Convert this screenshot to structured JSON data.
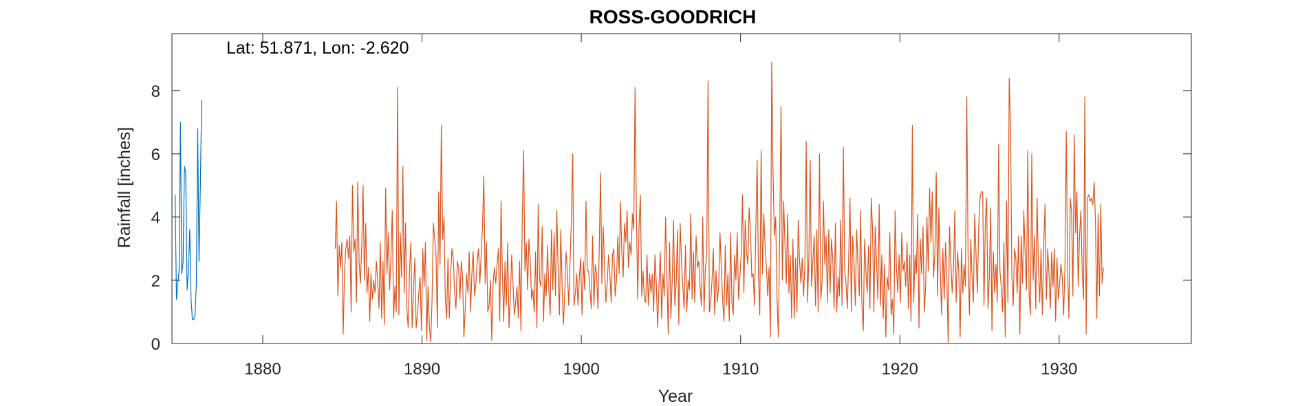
{
  "chart_data": {
    "type": "line",
    "title": "ROSS-GOODRICH",
    "annotation": "Lat: 51.871, Lon: -2.620",
    "xlabel": "Year",
    "ylabel": "Rainfall [inches]",
    "xlim": [
      1874.3,
      1938.3
    ],
    "ylim": [
      0,
      9.8
    ],
    "xticks": [
      1880,
      1890,
      1900,
      1910,
      1920,
      1930
    ],
    "yticks": [
      0,
      2,
      4,
      6,
      8
    ],
    "grid": false,
    "box": true,
    "series": [
      {
        "color": "#0072BD",
        "x_start": 1874.5,
        "x_step": 0.0833,
        "values": [
          4.7,
          1.4,
          1.9,
          2.3,
          7.0,
          2.2,
          2.6,
          5.6,
          5.4,
          1.7,
          2.3,
          3.6,
          1.4,
          0.75,
          0.75,
          0.9,
          1.9,
          6.8,
          2.6,
          5.0,
          7.7
        ]
      },
      {
        "color": "#D95319",
        "x_start": 1884.55,
        "x_step": 0.0833,
        "values": [
          3.0,
          4.5,
          1.5,
          3.1,
          2.4,
          3.2,
          0.3,
          2.2,
          3.0,
          3.3,
          2.7,
          3.4,
          1.0,
          5.0,
          2.9,
          3.3,
          1.3,
          5.1,
          2.6,
          1.9,
          3.1,
          5.0,
          2.0,
          3.8,
          1.6,
          2.4,
          0.7,
          2.2,
          1.4,
          2.0,
          1.6,
          2.6,
          2.0,
          1.1,
          3.2,
          0.8,
          2.6,
          0.6,
          4.9,
          2.2,
          3.5,
          1.7,
          2.8,
          4.2,
          0.8,
          1.8,
          1.0,
          8.1,
          0.9,
          3.5,
          2.1,
          5.6,
          1.6,
          3.8,
          1.1,
          0.5,
          2.3,
          3.2,
          0.5,
          1.7,
          2.7,
          0.5,
          0.9,
          1.6,
          2.1,
          0.4,
          3.0,
          1.8,
          3.2,
          0.1,
          1.8,
          0.5,
          0.05,
          1.4,
          3.8,
          3.3,
          2.8,
          0.5,
          4.8,
          2.5,
          6.9,
          3.3,
          4.0,
          1.4,
          0.8,
          2.7,
          0.8,
          2.2,
          3.0,
          2.7,
          1.6,
          1.1,
          2.6,
          2.4,
          1.4,
          2.6,
          2.1,
          0.2,
          1.1,
          2.2,
          1.6,
          2.9,
          1.0,
          2.2,
          2.9,
          1.5,
          1.9,
          2.6,
          3.0,
          1.9,
          2.8,
          3.7,
          5.3,
          1.9,
          3.2,
          1.0,
          1.2,
          2.0,
          0.1,
          1.9,
          2.4,
          1.9,
          2.5,
          3.0,
          0.7,
          4.5,
          2.2,
          0.7,
          2.6,
          1.2,
          3.2,
          0.5,
          1.5,
          2.8,
          1.9,
          0.9,
          1.3,
          1.8,
          0.8,
          2.6,
          0.4,
          4.0,
          6.1,
          2.3,
          3.2,
          1.7,
          3.3,
          2.6,
          1.4,
          1.7,
          1.0,
          2.9,
          0.5,
          4.4,
          2.0,
          1.8,
          3.7,
          0.7,
          2.2,
          1.5,
          3.1,
          1.7,
          0.9,
          3.6,
          1.7,
          3.5,
          1.5,
          4.2,
          2.4,
          0.9,
          3.6,
          1.8,
          0.6,
          1.6,
          2.9,
          2.3,
          1.2,
          2.6,
          3.9,
          6.0,
          1.2,
          1.6,
          2.2,
          1.2,
          2.1,
          2.7,
          0.9,
          2.6,
          1.7,
          4.5,
          2.3,
          2.3,
          1.7,
          1.1,
          3.4,
          1.2,
          2.5,
          2.2,
          1.1,
          3.0,
          5.4,
          1.9,
          3.7,
          2.4,
          1.3,
          1.9,
          2.8,
          2.2,
          1.3,
          2.8,
          3.0,
          1.5,
          2.0,
          3.4,
          2.2,
          4.5,
          2.9,
          2.1,
          3.8,
          3.2,
          4.2,
          2.4,
          3.2,
          2.8,
          4.1,
          3.6,
          8.1,
          4.1,
          1.4,
          3.7,
          4.7,
          1.5,
          2.3,
          1.4,
          1.3,
          2.8,
          1.2,
          2.2,
          1.6,
          2.2,
          1.0,
          2.8,
          1.9,
          0.5,
          1.8,
          2.9,
          0.8,
          2.2,
          1.5,
          4.0,
          2.1,
          0.3,
          3.2,
          0.8,
          2.0,
          3.9,
          1.2,
          1.9,
          3.6,
          0.6,
          3.8,
          2.6,
          1.8,
          1.1,
          3.1,
          1.0,
          2.0,
          1.7,
          4.1,
          1.4,
          2.9,
          1.3,
          3.4,
          2.4,
          2.6,
          1.8,
          1.2,
          4.0,
          1.0,
          2.4,
          2.8,
          8.3,
          1.0,
          1.3,
          2.0,
          3.0,
          0.9,
          2.3,
          1.3,
          1.8,
          3.5,
          2.4,
          1.4,
          0.7,
          3.1,
          1.2,
          2.2,
          0.7,
          3.5,
          1.3,
          0.9,
          2.8,
          2.0,
          3.5,
          1.4,
          2.1,
          2.8,
          4.7,
          1.6,
          3.9,
          2.9,
          2.5,
          4.3,
          3.5,
          2.1,
          2.2,
          1.2,
          3.6,
          5.8,
          2.2,
          0.9,
          6.1,
          2.2,
          4.1,
          3.1,
          2.4,
          1.5,
          2.4,
          0.2,
          8.9,
          5.4,
          3.4,
          4.0,
          1.4,
          0.2,
          3.5,
          7.5,
          2.0,
          4.5,
          3.1,
          1.9,
          4.1,
          1.6,
          2.8,
          0.8,
          3.3,
          0.8,
          2.7,
          1.0,
          3.9,
          2.6,
          1.9,
          2.7,
          1.5,
          2.5,
          6.4,
          1.3,
          2.7,
          5.8,
          1.8,
          2.6,
          3.4,
          1.2,
          3.6,
          1.0,
          6.0,
          1.4,
          2.0,
          4.5,
          2.5,
          3.4,
          1.3,
          3.6,
          1.6,
          3.3,
          2.7,
          1.1,
          3.8,
          1.0,
          2.1,
          1.5,
          3.9,
          1.2,
          6.2,
          2.3,
          1.9,
          1.1,
          2.7,
          4.6,
          1.0,
          3.4,
          2.6,
          1.2,
          3.6,
          2.5,
          1.5,
          4.2,
          1.2,
          0.4,
          3.3,
          2.3,
          1.6,
          3.1,
          1.1,
          4.6,
          3.6,
          1.0,
          3.7,
          2.6,
          1.4,
          4.4,
          1.2,
          2.8,
          0.8,
          2.5,
          0.2,
          2.1,
          1.7,
          3.5,
          0.9,
          1.4,
          0.3,
          4.2,
          2.4,
          1.6,
          2.8,
          1.3,
          3.5,
          2.3,
          2.6,
          1.8,
          3.2,
          1.1,
          2.8,
          0.7,
          6.9,
          1.3,
          2.8,
          2.2,
          4.1,
          0.5,
          3.3,
          2.2,
          3.7,
          1.0,
          1.8,
          4.0,
          2.3,
          4.9,
          3.2,
          4.8,
          2.1,
          2.9,
          5.4,
          1.5,
          4.3,
          2.4,
          0.9,
          3.0,
          1.4,
          3.2,
          2.1,
          0.0,
          3.7,
          2.6,
          1.6,
          2.4,
          4.2,
          1.3,
          2.9,
          2.3,
          0.2,
          3.0,
          1.6,
          2.5,
          1.8,
          7.8,
          2.8,
          0.9,
          3.3,
          2.1,
          1.3,
          4.1,
          2.8,
          1.6,
          3.7,
          4.6,
          4.8,
          4.8,
          1.2,
          3.9,
          4.6,
          1.1,
          2.1,
          4.3,
          0.4,
          2.9,
          1.6,
          2.5,
          1.3,
          6.3,
          2.3,
          1.8,
          1.0,
          3.2,
          0.2,
          4.5,
          1.3,
          8.4,
          6.9,
          2.1,
          1.2,
          3.0,
          2.7,
          1.6,
          3.4,
          0.3,
          3.4,
          1.9,
          4.2,
          2.8,
          1.7,
          6.1,
          1.5,
          0.9,
          6.0,
          2.0,
          3.4,
          1.1,
          4.6,
          2.4,
          1.3,
          3.0,
          0.9,
          3.1,
          4.4,
          1.4,
          3.0,
          2.2,
          1.1,
          2.9,
          1.8,
          3.0,
          0.7,
          2.7,
          1.4,
          1.9,
          2.5,
          2.1,
          0.9,
          2.4,
          6.7,
          2.4,
          0.8,
          4.6,
          4.2,
          1.5,
          6.6,
          3.5,
          4.8,
          1.8,
          3.4,
          4.2,
          2.3,
          1.4,
          7.8,
          0.3,
          4.6,
          4.7,
          4.5,
          4.6,
          4.4,
          5.1,
          3.9,
          0.8,
          4.1,
          1.5,
          4.4,
          1.9,
          2.4
        ]
      }
    ]
  }
}
